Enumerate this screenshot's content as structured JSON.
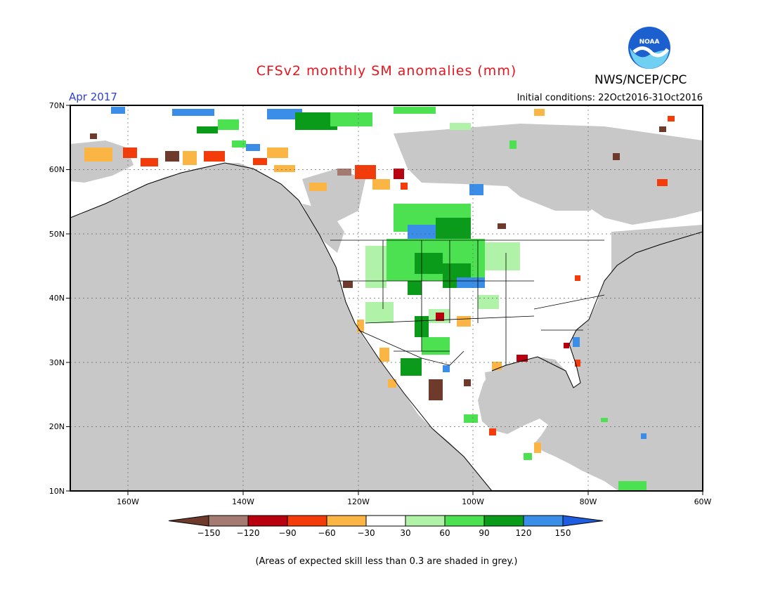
{
  "header": {
    "title": "CFSv2 monthly SM anomalies (mm)",
    "agency": "NWS/NCEP/CPC",
    "logo_text": "NOAA",
    "valid_month": "Apr 2017",
    "initial_conditions": "Initial conditions: 22Oct2016-31Oct2016"
  },
  "axes": {
    "lat_labels": [
      "70N",
      "60N",
      "50N",
      "40N",
      "30N",
      "20N",
      "10N"
    ],
    "lon_labels": [
      "160W",
      "140W",
      "120W",
      "100W",
      "80W",
      "60W"
    ]
  },
  "legend": {
    "ticks": [
      "-150",
      "-120",
      "-90",
      "-60",
      "-30",
      "30",
      "60",
      "90",
      "120",
      "150"
    ],
    "colors": [
      "#6e3a2b",
      "#a47b70",
      "#b8000f",
      "#f43c0a",
      "#fbb545",
      "#ffffff",
      "#b0f2a8",
      "#4ce150",
      "#0a9b1a",
      "#3b8ee8",
      "#1e5de0"
    ]
  },
  "footer": "(Areas of expected skill less than 0.3 are shaded in grey.)",
  "colors": {
    "title": "#e8141e",
    "valid_month": "#2a3ee0",
    "ocean": "#c8c8c8"
  }
}
